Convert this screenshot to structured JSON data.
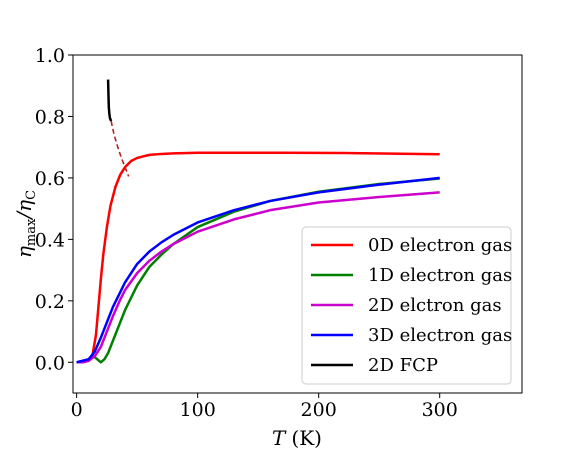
{
  "chart_data": {
    "type": "line",
    "xlabel_symbol": "T",
    "xlabel_unit": "(K)",
    "ylabel_symbol": "η",
    "ylabel_sub": "max",
    "ylabel_sep": "/η",
    "ylabel_sub2": "C",
    "xlim": [
      -3,
      368
    ],
    "ylim": [
      -0.1,
      1.0
    ],
    "x_ticks": [
      0,
      100,
      200,
      300
    ],
    "x_tick_labels": [
      "0",
      "100",
      "200",
      "300"
    ],
    "y_ticks": [
      0.0,
      0.2,
      0.4,
      0.6,
      0.8,
      1.0
    ],
    "y_tick_labels": [
      "0.0",
      "0.2",
      "0.4",
      "0.6",
      "0.8",
      "1.0"
    ],
    "grid": false,
    "legend_position": "lower-right",
    "series": [
      {
        "name": "0D electron gas",
        "color": "#ff0000",
        "style": "solid",
        "x": [
          0,
          5,
          10,
          13,
          16,
          18,
          20,
          22,
          25,
          28,
          32,
          36,
          40,
          45,
          50,
          60,
          70,
          80,
          100,
          130,
          170,
          220,
          260,
          300
        ],
        "y": [
          0.0,
          0.0,
          0.005,
          0.02,
          0.09,
          0.18,
          0.27,
          0.35,
          0.44,
          0.51,
          0.57,
          0.61,
          0.635,
          0.655,
          0.665,
          0.675,
          0.678,
          0.68,
          0.682,
          0.682,
          0.682,
          0.681,
          0.679,
          0.677
        ]
      },
      {
        "name": "1D electron gas",
        "color": "#008000",
        "style": "solid",
        "x": [
          0,
          5,
          10,
          14,
          17,
          20,
          23,
          26,
          30,
          35,
          40,
          50,
          60,
          70,
          80,
          100,
          130,
          160,
          200,
          250,
          300
        ],
        "y": [
          0.0,
          0.0,
          0.01,
          0.02,
          0.01,
          0.0,
          0.01,
          0.03,
          0.07,
          0.12,
          0.17,
          0.25,
          0.31,
          0.35,
          0.385,
          0.44,
          0.49,
          0.525,
          0.555,
          0.58,
          0.598
        ]
      },
      {
        "name": "2D elctron gas",
        "color": "#cc00cc",
        "style": "solid",
        "x": [
          0,
          5,
          10,
          15,
          20,
          25,
          30,
          35,
          40,
          50,
          60,
          70,
          80,
          100,
          130,
          160,
          200,
          250,
          300
        ],
        "y": [
          0.0,
          0.0,
          0.005,
          0.02,
          0.05,
          0.1,
          0.15,
          0.195,
          0.235,
          0.29,
          0.33,
          0.36,
          0.385,
          0.425,
          0.465,
          0.495,
          0.52,
          0.538,
          0.553
        ]
      },
      {
        "name": "3D electron gas",
        "color": "#0000ff",
        "style": "solid",
        "x": [
          0,
          5,
          10,
          15,
          20,
          25,
          30,
          35,
          40,
          50,
          60,
          70,
          80,
          100,
          130,
          160,
          200,
          250,
          300
        ],
        "y": [
          0.0,
          0.005,
          0.01,
          0.035,
          0.08,
          0.13,
          0.18,
          0.22,
          0.26,
          0.32,
          0.36,
          0.39,
          0.415,
          0.455,
          0.495,
          0.525,
          0.553,
          0.578,
          0.6
        ]
      },
      {
        "name": "2D FCP",
        "color": "#000000",
        "style": "solid",
        "x": [
          26,
          26.3,
          26.6,
          27,
          27.5,
          28.5
        ],
        "y": [
          0.92,
          0.87,
          0.83,
          0.81,
          0.795,
          0.785
        ]
      },
      {
        "name": "",
        "color": "#b22222",
        "style": "dashed",
        "x": [
          28.5,
          31,
          34,
          37,
          40,
          43
        ],
        "y": [
          0.785,
          0.74,
          0.7,
          0.665,
          0.635,
          0.605
        ]
      }
    ],
    "legend_entries": [
      "0D electron gas",
      "1D electron gas",
      "2D elctron gas",
      "3D electron gas",
      "2D FCP"
    ]
  }
}
